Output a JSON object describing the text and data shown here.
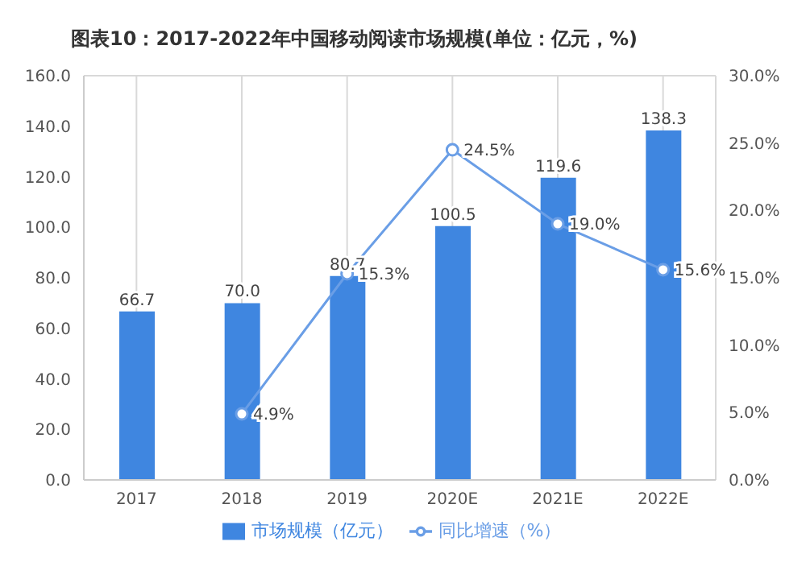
{
  "chart_data": {
    "type": "bar",
    "title": "图表10：2017-2022年中国移动阅读市场规模(单位：亿元，%)",
    "categories": [
      "2017",
      "2018",
      "2019",
      "2020E",
      "2021E",
      "2022E"
    ],
    "series": [
      {
        "name": "市场规模（亿元）",
        "color": "#3f86e0",
        "values": [
          66.7,
          70.0,
          80.7,
          100.5,
          119.6,
          138.3
        ],
        "value_labels": [
          "66.7",
          "70.0",
          "80.7",
          "100.5",
          "119.6",
          "138.3"
        ]
      },
      {
        "name": "同比增速（%）",
        "type": "line",
        "axis": "y2",
        "color": "#6a9ee6",
        "values": [
          null,
          4.9,
          15.3,
          24.5,
          19.0,
          15.6
        ],
        "value_labels": [
          null,
          "4.9%",
          "15.3%",
          "24.5%",
          "19.0%",
          "15.6%"
        ]
      }
    ],
    "ylim": [
      0,
      160
    ],
    "yticks": [
      {
        "value": 0,
        "label": "0.0"
      },
      {
        "value": 20,
        "label": "20.0"
      },
      {
        "value": 40,
        "label": "40.0"
      },
      {
        "value": 60,
        "label": "60.0"
      },
      {
        "value": 80,
        "label": "80.0"
      },
      {
        "value": 100,
        "label": "100.0"
      },
      {
        "value": 120,
        "label": "120.0"
      },
      {
        "value": 140,
        "label": "140.0"
      },
      {
        "value": 160,
        "label": "160.0"
      }
    ],
    "y2lim": [
      0,
      30
    ],
    "y2ticks": [
      {
        "value": 0,
        "label": "0.0%"
      },
      {
        "value": 5,
        "label": "5.0%"
      },
      {
        "value": 10,
        "label": "10.0%"
      },
      {
        "value": 15,
        "label": "15.0%"
      },
      {
        "value": 20,
        "label": "20.0%"
      },
      {
        "value": 25,
        "label": "25.0%"
      },
      {
        "value": 30,
        "label": "30.0%"
      }
    ],
    "grid": true,
    "legend": "bottom",
    "marker": "circle",
    "line_style": "solid"
  }
}
